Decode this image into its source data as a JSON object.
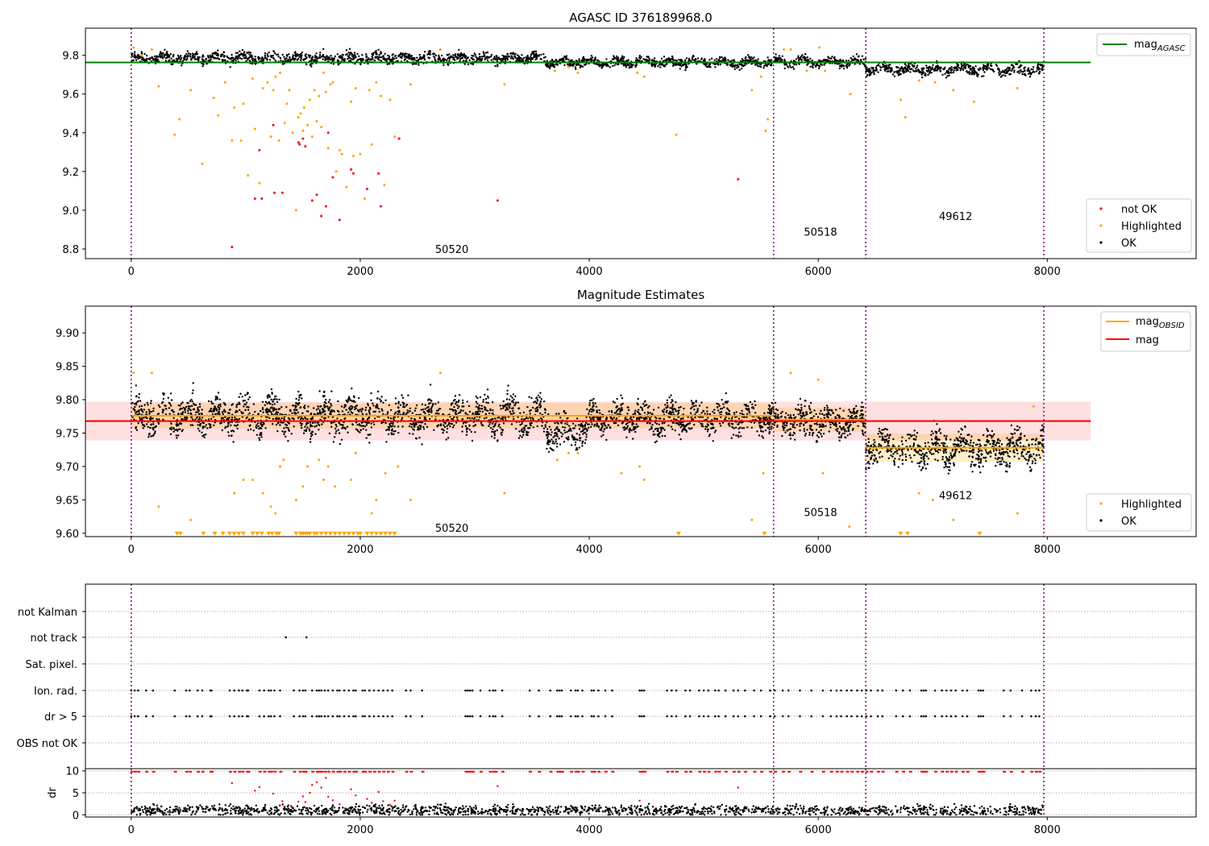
{
  "colors": {
    "ok": "#000000",
    "not_ok": "#ff0000",
    "highlighted": "#ffa500",
    "mag_agasc": "#008000",
    "mag": "#ff0000",
    "mag_obsid": "#ffa500",
    "obsid_line": "#800080",
    "grid": "#b0b0b0"
  },
  "chart_data": [
    {
      "type": "scatter",
      "title": "AGASC ID 376189968.0",
      "xlim": [
        -400,
        9300
      ],
      "ylim": [
        8.75,
        9.94
      ],
      "xticks": [
        0,
        2000,
        4000,
        6000,
        8000
      ],
      "yticks": [
        "8.8",
        "9.0",
        "9.2",
        "9.4",
        "9.6",
        "9.8"
      ],
      "legend_position": "top-right, bottom-right",
      "legend_top": [
        {
          "label": "mag",
          "sub": "AGASC",
          "kind": "line",
          "color": "#008000"
        }
      ],
      "legend_bottom": [
        {
          "label": "not OK",
          "kind": "point",
          "color": "#ff0000"
        },
        {
          "label": "Highlighted",
          "kind": "point",
          "color": "#ffa500"
        },
        {
          "label": "OK",
          "kind": "point",
          "color": "#000000"
        }
      ],
      "obsid_boundaries": [
        0,
        5610,
        6415,
        7970
      ],
      "obsid_labels": [
        {
          "text": "50520",
          "x": 2800,
          "y": 8.8
        },
        {
          "text": "50518",
          "x": 6020,
          "y": 8.89
        },
        {
          "text": "49612",
          "x": 7200,
          "y": 8.97
        }
      ],
      "mag_agasc": {
        "value": 9.763,
        "x_range": [
          -400,
          8380
        ]
      },
      "ok_segments": [
        {
          "x_range": [
            0,
            3620
          ],
          "center": 9.785,
          "spread": 0.025
        },
        {
          "x_range": [
            3620,
            5610
          ],
          "center": 9.765,
          "spread": 0.022
        },
        {
          "x_range": [
            5610,
            6415
          ],
          "center": 9.765,
          "spread": 0.022
        },
        {
          "x_range": [
            6415,
            7970
          ],
          "center": 9.727,
          "spread": 0.025
        }
      ],
      "highlighted_points": [
        [
          20,
          9.84
        ],
        [
          90,
          9.8
        ],
        [
          180,
          9.83
        ],
        [
          240,
          9.64
        ],
        [
          380,
          9.39
        ],
        [
          420,
          9.47
        ],
        [
          520,
          9.62
        ],
        [
          620,
          9.24
        ],
        [
          720,
          9.58
        ],
        [
          760,
          9.49
        ],
        [
          820,
          9.66
        ],
        [
          880,
          9.36
        ],
        [
          900,
          9.53
        ],
        [
          960,
          9.36
        ],
        [
          980,
          9.55
        ],
        [
          1020,
          9.18
        ],
        [
          1060,
          9.68
        ],
        [
          1080,
          9.42
        ],
        [
          1120,
          9.14
        ],
        [
          1150,
          9.63
        ],
        [
          1190,
          9.66
        ],
        [
          1220,
          9.38
        ],
        [
          1240,
          9.62
        ],
        [
          1260,
          9.69
        ],
        [
          1290,
          9.36
        ],
        [
          1300,
          9.71
        ],
        [
          1340,
          9.45
        ],
        [
          1360,
          9.55
        ],
        [
          1380,
          9.62
        ],
        [
          1410,
          9.4
        ],
        [
          1440,
          9.0
        ],
        [
          1460,
          9.48
        ],
        [
          1480,
          9.5
        ],
        [
          1500,
          9.41
        ],
        [
          1510,
          9.53
        ],
        [
          1540,
          9.44
        ],
        [
          1560,
          9.57
        ],
        [
          1580,
          9.38
        ],
        [
          1600,
          9.62
        ],
        [
          1620,
          9.46
        ],
        [
          1640,
          9.59
        ],
        [
          1660,
          9.43
        ],
        [
          1680,
          9.71
        ],
        [
          1700,
          9.61
        ],
        [
          1720,
          9.32
        ],
        [
          1740,
          9.65
        ],
        [
          1760,
          9.66
        ],
        [
          1790,
          9.2
        ],
        [
          1820,
          9.31
        ],
        [
          1840,
          9.29
        ],
        [
          1880,
          9.12
        ],
        [
          1920,
          9.56
        ],
        [
          1940,
          9.28
        ],
        [
          1960,
          9.63
        ],
        [
          2000,
          9.29
        ],
        [
          2040,
          9.06
        ],
        [
          2080,
          9.62
        ],
        [
          2100,
          9.34
        ],
        [
          2140,
          9.66
        ],
        [
          2180,
          9.59
        ],
        [
          2210,
          9.13
        ],
        [
          2260,
          9.57
        ],
        [
          2300,
          9.38
        ],
        [
          2440,
          9.65
        ],
        [
          2700,
          9.83
        ],
        [
          3260,
          9.65
        ],
        [
          3700,
          9.72
        ],
        [
          3820,
          9.74
        ],
        [
          3900,
          9.71
        ],
        [
          4420,
          9.71
        ],
        [
          4480,
          9.69
        ],
        [
          4760,
          9.39
        ],
        [
          5420,
          9.62
        ],
        [
          5500,
          9.69
        ],
        [
          5540,
          9.41
        ],
        [
          5560,
          9.47
        ],
        [
          5700,
          9.83
        ],
        [
          5760,
          9.83
        ],
        [
          5900,
          9.72
        ],
        [
          6010,
          9.84
        ],
        [
          6060,
          9.72
        ],
        [
          6280,
          9.6
        ],
        [
          6720,
          9.57
        ],
        [
          6760,
          9.48
        ],
        [
          6880,
          9.67
        ],
        [
          7020,
          9.66
        ],
        [
          7180,
          9.62
        ],
        [
          7360,
          9.56
        ],
        [
          7740,
          9.63
        ]
      ],
      "not_ok_points": [
        [
          880,
          8.81
        ],
        [
          1080,
          9.06
        ],
        [
          1140,
          9.06
        ],
        [
          1120,
          9.31
        ],
        [
          1240,
          9.44
        ],
        [
          1250,
          9.09
        ],
        [
          1320,
          9.09
        ],
        [
          1460,
          9.35
        ],
        [
          1470,
          9.34
        ],
        [
          1500,
          9.37
        ],
        [
          1520,
          9.33
        ],
        [
          1580,
          9.05
        ],
        [
          1620,
          9.08
        ],
        [
          1660,
          8.97
        ],
        [
          1700,
          9.02
        ],
        [
          1720,
          9.4
        ],
        [
          1760,
          9.17
        ],
        [
          1820,
          8.95
        ],
        [
          1920,
          9.21
        ],
        [
          1940,
          9.19
        ],
        [
          2060,
          9.11
        ],
        [
          2160,
          9.19
        ],
        [
          2180,
          9.02
        ],
        [
          2340,
          9.37
        ],
        [
          3200,
          9.05
        ],
        [
          5300,
          9.16
        ]
      ]
    },
    {
      "type": "scatter",
      "title": "Magnitude Estimates",
      "xlim": [
        -400,
        9300
      ],
      "ylim": [
        9.595,
        9.94
      ],
      "xticks": [
        0,
        2000,
        4000,
        6000,
        8000
      ],
      "yticks": [
        "9.60",
        "9.65",
        "9.70",
        "9.75",
        "9.80",
        "9.85",
        "9.90"
      ],
      "legend_position": "top-right, bottom-right",
      "legend_top": [
        {
          "label": "mag",
          "sub": "OBSID",
          "kind": "line",
          "color": "#ffa500"
        },
        {
          "label": "mag",
          "sub": "",
          "kind": "line",
          "color": "#ff0000"
        }
      ],
      "legend_bottom": [
        {
          "label": "Highlighted",
          "kind": "point",
          "color": "#ffa500"
        },
        {
          "label": "OK",
          "kind": "point",
          "color": "#000000"
        }
      ],
      "obsid_boundaries": [
        0,
        5610,
        6415,
        7970
      ],
      "obsid_labels": [
        {
          "text": "50520",
          "x": 2800,
          "y": 9.608
        },
        {
          "text": "50518",
          "x": 6020,
          "y": 9.632
        },
        {
          "text": "49612",
          "x": 7200,
          "y": 9.657
        }
      ],
      "mag": {
        "value": 9.768,
        "band": [
          9.739,
          9.797
        ],
        "x_range": [
          -400,
          8380
        ]
      },
      "mag_obsid": [
        {
          "x_range": [
            0,
            5610
          ],
          "value": 9.776,
          "band": [
            9.757,
            9.795
          ]
        },
        {
          "x_range": [
            5610,
            6415
          ],
          "value": 9.77,
          "band": [
            9.752,
            9.788
          ]
        },
        {
          "x_range": [
            6415,
            7970
          ],
          "value": 9.728,
          "band": [
            9.707,
            9.749
          ]
        }
      ],
      "ok_segments": [
        {
          "x_range": [
            0,
            3620
          ],
          "center": 9.776,
          "spread": 0.024
        },
        {
          "x_range": [
            3620,
            4000
          ],
          "center": 9.755,
          "spread": 0.022
        },
        {
          "x_range": [
            4000,
            5610
          ],
          "center": 9.772,
          "spread": 0.02
        },
        {
          "x_range": [
            5610,
            6415
          ],
          "center": 9.768,
          "spread": 0.02
        },
        {
          "x_range": [
            6415,
            7970
          ],
          "center": 9.727,
          "spread": 0.022
        }
      ],
      "highlighted_points": [
        [
          20,
          9.84
        ],
        [
          180,
          9.84
        ],
        [
          240,
          9.64
        ],
        [
          520,
          9.62
        ],
        [
          900,
          9.66
        ],
        [
          980,
          9.68
        ],
        [
          1060,
          9.68
        ],
        [
          1150,
          9.66
        ],
        [
          1220,
          9.64
        ],
        [
          1260,
          9.63
        ],
        [
          1300,
          9.7
        ],
        [
          1330,
          9.71
        ],
        [
          1440,
          9.65
        ],
        [
          1500,
          9.67
        ],
        [
          1540,
          9.7
        ],
        [
          1640,
          9.71
        ],
        [
          1680,
          9.68
        ],
        [
          1720,
          9.7
        ],
        [
          1780,
          9.67
        ],
        [
          1920,
          9.68
        ],
        [
          1960,
          9.72
        ],
        [
          2100,
          9.63
        ],
        [
          2140,
          9.65
        ],
        [
          2220,
          9.69
        ],
        [
          2330,
          9.7
        ],
        [
          2440,
          9.65
        ],
        [
          2700,
          9.84
        ],
        [
          3260,
          9.66
        ],
        [
          3720,
          9.71
        ],
        [
          3820,
          9.72
        ],
        [
          3900,
          9.72
        ],
        [
          4280,
          9.69
        ],
        [
          4440,
          9.7
        ],
        [
          4480,
          9.68
        ],
        [
          5420,
          9.62
        ],
        [
          5520,
          9.69
        ],
        [
          5760,
          9.84
        ],
        [
          6000,
          9.83
        ],
        [
          6040,
          9.69
        ],
        [
          6270,
          9.61
        ],
        [
          6880,
          9.66
        ],
        [
          7000,
          9.65
        ],
        [
          7180,
          9.62
        ],
        [
          7740,
          9.63
        ],
        [
          7880,
          9.79
        ]
      ],
      "clipped_x": [
        400,
        430,
        630,
        730,
        800,
        860,
        900,
        940,
        980,
        1060,
        1100,
        1140,
        1200,
        1230,
        1270,
        1290,
        1440,
        1480,
        1500,
        1520,
        1540,
        1560,
        1600,
        1620,
        1660,
        1700,
        1740,
        1780,
        1820,
        1860,
        1900,
        1940,
        1980,
        2000,
        2060,
        2100,
        2140,
        2180,
        2220,
        2260,
        2300,
        4780,
        5530,
        6720,
        6780,
        7410
      ]
    },
    {
      "type": "scatter",
      "title": "",
      "xlim": [
        -400,
        9300
      ],
      "ylabel": "dr",
      "flag_rows": [
        "not Kalman",
        "not track",
        "Sat. pixel.",
        "Ion. rad.",
        "dr > 5",
        "OBS not OK"
      ],
      "dr_ylim": [
        -0.5,
        10.5
      ],
      "dr_yticks": [
        "0",
        "5",
        "10"
      ],
      "obsid_boundaries": [
        0,
        5610,
        6415,
        7970
      ],
      "not_track_x": [
        1350,
        1530
      ],
      "flag_x": [
        0,
        30,
        60,
        130,
        190,
        380,
        480,
        510,
        580,
        620,
        690,
        700,
        860,
        900,
        940,
        970,
        1010,
        1020,
        1120,
        1160,
        1200,
        1220,
        1250,
        1300,
        1420,
        1470,
        1500,
        1520,
        1580,
        1620,
        1640,
        1660,
        1690,
        1720,
        1760,
        1800,
        1820,
        1860,
        1900,
        1940,
        1960,
        2020,
        2040,
        2080,
        2120,
        2160,
        2200,
        2240,
        2280,
        2400,
        2440,
        2540,
        2920,
        2940,
        2960,
        2980,
        3050,
        3130,
        3160,
        3180,
        3240,
        3480,
        3560,
        3660,
        3720,
        3740,
        3760,
        3840,
        3880,
        3900,
        3940,
        4020,
        4040,
        4080,
        4140,
        4200,
        4440,
        4460,
        4480,
        4680,
        4720,
        4760,
        4840,
        4880,
        4960,
        5000,
        5040,
        5100,
        5130,
        5190,
        5260,
        5300,
        5360,
        5440,
        5500,
        5580,
        5620,
        5690,
        5740,
        5840,
        5940,
        6040,
        6110,
        6160,
        6200,
        6250,
        6290,
        6340,
        6380,
        6420,
        6460,
        6520,
        6560,
        6680,
        6740,
        6800,
        6900,
        6920,
        6940,
        7020,
        7080,
        7120,
        7160,
        7200,
        7260,
        7300,
        7400,
        7420,
        7440,
        7620,
        7680,
        7780,
        7860,
        7900,
        7930
      ]
    }
  ]
}
